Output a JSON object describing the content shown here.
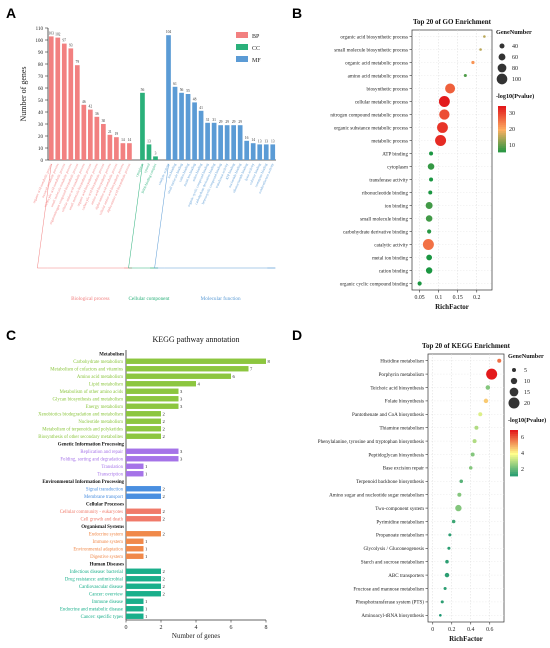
{
  "panels": {
    "a": "A",
    "b": "B",
    "c": "C",
    "d": "D"
  },
  "chart_data": [
    {
      "panel": "A",
      "type": "bar",
      "ylabel": "Number of genes",
      "ylim": [
        0,
        110
      ],
      "yticks": [
        0,
        10,
        20,
        30,
        40,
        50,
        60,
        70,
        80,
        90,
        100,
        110
      ],
      "legend": {
        "placement": "top-right",
        "items": [
          {
            "label": "BP",
            "color": "#f28080"
          },
          {
            "label": "CC",
            "color": "#2ab07a"
          },
          {
            "label": "MF",
            "color": "#5b9bd5"
          }
        ]
      },
      "groups": [
        {
          "label": "Biological process",
          "color": "#f28080",
          "categories": [
            "organic acid metabolic process",
            "oxoacid metabolic process",
            "carboxylic acid metabolic process",
            "small molecule metabolic process",
            "organonitrogen compound biosynthetic process",
            "cellular amino acid metabolic process",
            "small molecule biosynthetic process",
            "organic acid biosynthetic process",
            "carboxylic acid biosynthetic process",
            "amino acid biosynthetic process",
            "alpha-amino acid metabolic process",
            "cellular amino acid biosynthetic process",
            "alpha-amino acid biosynthetic process"
          ],
          "values": [
            103,
            102,
            97,
            93,
            79,
            46,
            42,
            36,
            30,
            21,
            19,
            14,
            14
          ]
        },
        {
          "label": "Cellular component",
          "color": "#2ab07a",
          "categories": [
            "cytoplasm",
            "cytosol",
            "DNA-binding complex"
          ],
          "values": [
            56,
            13,
            3
          ]
        },
        {
          "label": "Molecular function",
          "color": "#5b9bd5",
          "categories": [
            "catalytic activity",
            "ion binding",
            "small molecule binding",
            "cation binding",
            "metal ion binding",
            "anion binding",
            "organic cyclic compound binding",
            "carbohydrate derivative binding",
            "heterocyclic compound binding",
            "transferase activity",
            "ATP binding",
            "nucleotide binding",
            "ribonucleotide binding",
            "lyase activity",
            "cofactor binding",
            "coenzyme binding",
            "oxidoreductase activity"
          ],
          "values": [
            104,
            61,
            56,
            55,
            48,
            41,
            31,
            31,
            29,
            29,
            29,
            29,
            16,
            14,
            13,
            13,
            13
          ]
        }
      ]
    },
    {
      "panel": "B",
      "type": "scatter",
      "title": "Top 20 of GO Enrichment",
      "xlabel": "RichFactor",
      "xlim": [
        0.03,
        0.24
      ],
      "xticks": [
        0.05,
        0.1,
        0.15,
        0.2
      ],
      "size_legend": {
        "title": "GeneNumber",
        "values": [
          40,
          60,
          80,
          100
        ]
      },
      "color_legend": {
        "title": "-log10(Pvalue)",
        "ticks": [
          10,
          20,
          30
        ],
        "low": "#1a9641",
        "mid": "#fdae61",
        "high": "#e31a1c"
      },
      "terms": [
        "organic acid biosynthetic process",
        "small molecule biosynthetic process",
        "organic acid metabolic process",
        "amino acid metabolic process",
        "biosynthetic process",
        "cellular metabolic process",
        "nitrogen compound metabolic process",
        "organic substance metabolic process",
        "metabolic process",
        "ATP binding",
        "cytoplasm",
        "transferase activity",
        "ribonucleotide binding",
        "ion binding",
        "small molecule binding",
        "carbohydrate derivative binding",
        "catalytic activity",
        "metal ion binding",
        "cation binding",
        "organic cyclic compound binding"
      ],
      "rich_factor": [
        0.22,
        0.21,
        0.19,
        0.17,
        0.13,
        0.115,
        0.115,
        0.11,
        0.105,
        0.08,
        0.08,
        0.08,
        0.078,
        0.075,
        0.075,
        0.075,
        0.073,
        0.075,
        0.075,
        0.05
      ],
      "gene_number": [
        14,
        14,
        21,
        19,
        93,
        103,
        97,
        102,
        104,
        29,
        56,
        29,
        29,
        61,
        56,
        31,
        104,
        48,
        55,
        31
      ],
      "neg_log10_p": [
        14,
        14,
        22,
        6,
        28,
        36,
        30,
        33,
        34,
        2,
        4,
        2,
        2,
        5,
        5,
        3,
        26,
        2,
        2,
        2
      ]
    },
    {
      "panel": "C",
      "type": "bar",
      "title": "KEGG pathway annotation",
      "xlabel": "Number of genes",
      "xlim": [
        0,
        8
      ],
      "xticks": [
        0,
        2,
        4,
        6,
        8
      ],
      "groups": [
        {
          "label": "Metabolism",
          "color": "#8cc63f",
          "categories": [
            "Carbohydrate metabolism",
            "Metabolism of cofactors and vitamins",
            "Amino acid metabolism",
            "Lipid metabolism",
            "Metabolism of other amino acids",
            "Glycan biosynthesis and metabolism",
            "Energy metabolism",
            "Xenobiotics biodegradation and metabolism",
            "Nucleotide metabolism",
            "Metabolism of terpenoids and polyketides",
            "Biosynthesis of other secondary metabolites"
          ],
          "values": [
            8,
            7,
            6,
            4,
            3,
            3,
            3,
            2,
            2,
            2,
            2
          ]
        },
        {
          "label": "Genetic Information Processing",
          "color": "#a573e8",
          "categories": [
            "Replication and repair",
            "Folding, sorting and degradation",
            "Translation",
            "Transcription"
          ],
          "values": [
            3,
            3,
            1,
            1
          ]
        },
        {
          "label": "Environmental Information Processing",
          "color": "#4a8fe0",
          "categories": [
            "Signal transduction",
            "Membrane transport"
          ],
          "values": [
            2,
            2
          ]
        },
        {
          "label": "Cellular Processes",
          "color": "#f07a6a",
          "categories": [
            "Cellular community - eukaryotes",
            "Cell growth and death"
          ],
          "values": [
            2,
            2
          ]
        },
        {
          "label": "Organismal Systems",
          "color": "#f0894a",
          "categories": [
            "Endocrine system",
            "Immune system",
            "Environmental adaptation",
            "Digestive system"
          ],
          "values": [
            2,
            1,
            1,
            1
          ]
        },
        {
          "label": "Human Diseases",
          "color": "#1aaf8b",
          "categories": [
            "Infectious disease: bacterial",
            "Drug resistance: antimicrobial",
            "Cardiovascular disease",
            "Cancer: overview",
            "Immune disease",
            "Endocrine and metabolic disease",
            "Cancer: specific types"
          ],
          "values": [
            2,
            2,
            2,
            2,
            1,
            1,
            1
          ]
        }
      ]
    },
    {
      "panel": "D",
      "type": "scatter",
      "title": "Top 20 of KEGG Enrichment",
      "xlabel": "RichFactor",
      "xlim": [
        -0.05,
        0.75
      ],
      "xticks": [
        0,
        0.2,
        0.4,
        0.6
      ],
      "size_legend": {
        "title": "GeneNumber",
        "values": [
          5,
          10,
          15,
          20
        ]
      },
      "color_legend": {
        "title": "-log10(Pvalue)",
        "ticks": [
          2,
          4,
          6
        ],
        "low": "#1a9670",
        "mid": "#ffff8c",
        "high": "#e31a1c"
      },
      "terms": [
        "Histidine metabolism",
        "Porphyrin metabolism",
        "Teichoic acid biosynthesis",
        "Folate biosynthesis",
        "Pantothenate and CoA biosynthesis",
        "Thiamine metabolism",
        "Phenylalanine, tyrosine and tryptophan biosynthesis",
        "Peptidoglycan biosynthesis",
        "Base excision repair",
        "Terpenoid backbone biosynthesis",
        "Amino sugar and nucleotide sugar metabolism",
        "Two-component system",
        "Pyrimidine metabolism",
        "Propanoate metabolism",
        "Glycolysis / Gluconeogenesis",
        "Starch and sucrose metabolism",
        "ABC transporters",
        "Fructose and mannose metabolism",
        "Phosphotransferase system (PTS)",
        "Aminoacyl-tRNA biosynthesis"
      ],
      "rich_factor": [
        0.7,
        0.62,
        0.58,
        0.56,
        0.5,
        0.46,
        0.44,
        0.42,
        0.4,
        0.3,
        0.28,
        0.27,
        0.22,
        0.18,
        0.17,
        0.15,
        0.15,
        0.13,
        0.1,
        0.08
      ],
      "gene_number": [
        5,
        20,
        6,
        6,
        5,
        5,
        5,
        5,
        4,
        4,
        5,
        10,
        4,
        3,
        3,
        4,
        6,
        3,
        3,
        2
      ],
      "neg_log10_p": [
        5,
        6,
        2,
        4,
        3,
        2.5,
        2.5,
        2,
        2,
        1.5,
        2,
        2,
        1.2,
        1,
        1,
        1,
        1,
        1,
        1,
        0.8
      ]
    }
  ]
}
